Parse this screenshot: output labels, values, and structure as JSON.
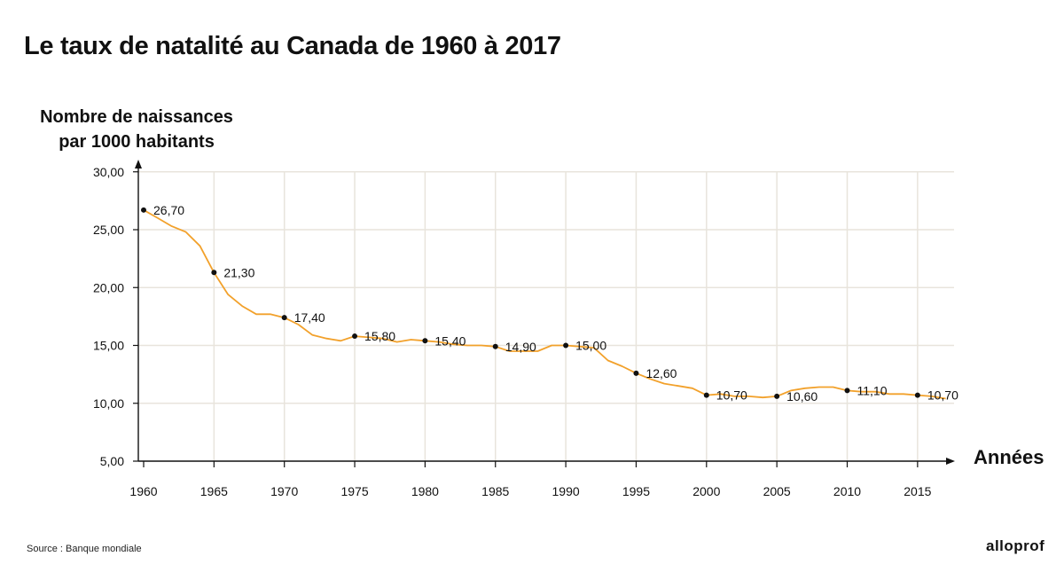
{
  "title": "Le taux de natalité au Canada de 1960 à 2017",
  "source": "Source : Banque mondiale",
  "logo": "alloprof",
  "colors": {
    "line": "#f2a12b",
    "grid": "#e8e4dc",
    "axis": "#111111",
    "point": "#111111"
  },
  "chart_data": {
    "type": "line",
    "title": "Le taux de natalité au Canada de 1960 à 2017",
    "ylabel_lines": [
      "Nombre de naissances",
      "par 1000 habitants"
    ],
    "xlabel": "Années",
    "xlim": [
      1960,
      2017
    ],
    "ylim": [
      5,
      30
    ],
    "x_ticks": [
      "1960",
      "1965",
      "1970",
      "1975",
      "1980",
      "1985",
      "1990",
      "1995",
      "2000",
      "2005",
      "2010",
      "2015"
    ],
    "y_ticks": [
      "5,00",
      "10,00",
      "15,00",
      "20,00",
      "25,00",
      "30,00"
    ],
    "grid": true,
    "series": [
      {
        "x": [
          1960,
          1961,
          1962,
          1963,
          1964,
          1965,
          1966,
          1967,
          1968,
          1969,
          1970,
          1971,
          1972,
          1973,
          1974,
          1975,
          1976,
          1977,
          1978,
          1979,
          1980,
          1981,
          1982,
          1983,
          1984,
          1985,
          1986,
          1987,
          1988,
          1989,
          1990,
          1991,
          1992,
          1993,
          1994,
          1995,
          1996,
          1997,
          1998,
          1999,
          2000,
          2001,
          2002,
          2003,
          2004,
          2005,
          2006,
          2007,
          2008,
          2009,
          2010,
          2011,
          2012,
          2013,
          2014,
          2015,
          2016,
          2017
        ],
        "y": [
          26.7,
          26.0,
          25.3,
          24.8,
          23.6,
          21.3,
          19.4,
          18.4,
          17.7,
          17.7,
          17.4,
          16.8,
          15.9,
          15.6,
          15.4,
          15.8,
          15.7,
          15.6,
          15.3,
          15.5,
          15.4,
          15.3,
          15.1,
          15.0,
          15.0,
          14.9,
          14.5,
          14.5,
          14.5,
          15.0,
          15.0,
          14.9,
          14.8,
          13.7,
          13.2,
          12.6,
          12.1,
          11.7,
          11.5,
          11.3,
          10.7,
          10.8,
          10.6,
          10.6,
          10.5,
          10.6,
          11.1,
          11.3,
          11.4,
          11.4,
          11.1,
          11.0,
          11.0,
          10.8,
          10.8,
          10.7,
          10.6,
          10.4
        ]
      }
    ],
    "labeled_points": [
      {
        "x": 1960,
        "y": 26.7,
        "label": "26,70"
      },
      {
        "x": 1965,
        "y": 21.3,
        "label": "21,30"
      },
      {
        "x": 1970,
        "y": 17.4,
        "label": "17,40"
      },
      {
        "x": 1975,
        "y": 15.8,
        "label": "15,80"
      },
      {
        "x": 1980,
        "y": 15.4,
        "label": "15,40"
      },
      {
        "x": 1985,
        "y": 14.9,
        "label": "14,90"
      },
      {
        "x": 1990,
        "y": 15.0,
        "label": "15,00"
      },
      {
        "x": 1995,
        "y": 12.6,
        "label": "12,60"
      },
      {
        "x": 2000,
        "y": 10.7,
        "label": "10,70"
      },
      {
        "x": 2005,
        "y": 10.6,
        "label": "10,60"
      },
      {
        "x": 2010,
        "y": 11.1,
        "label": "11,10"
      },
      {
        "x": 2015,
        "y": 10.7,
        "label": "10,70"
      }
    ]
  }
}
